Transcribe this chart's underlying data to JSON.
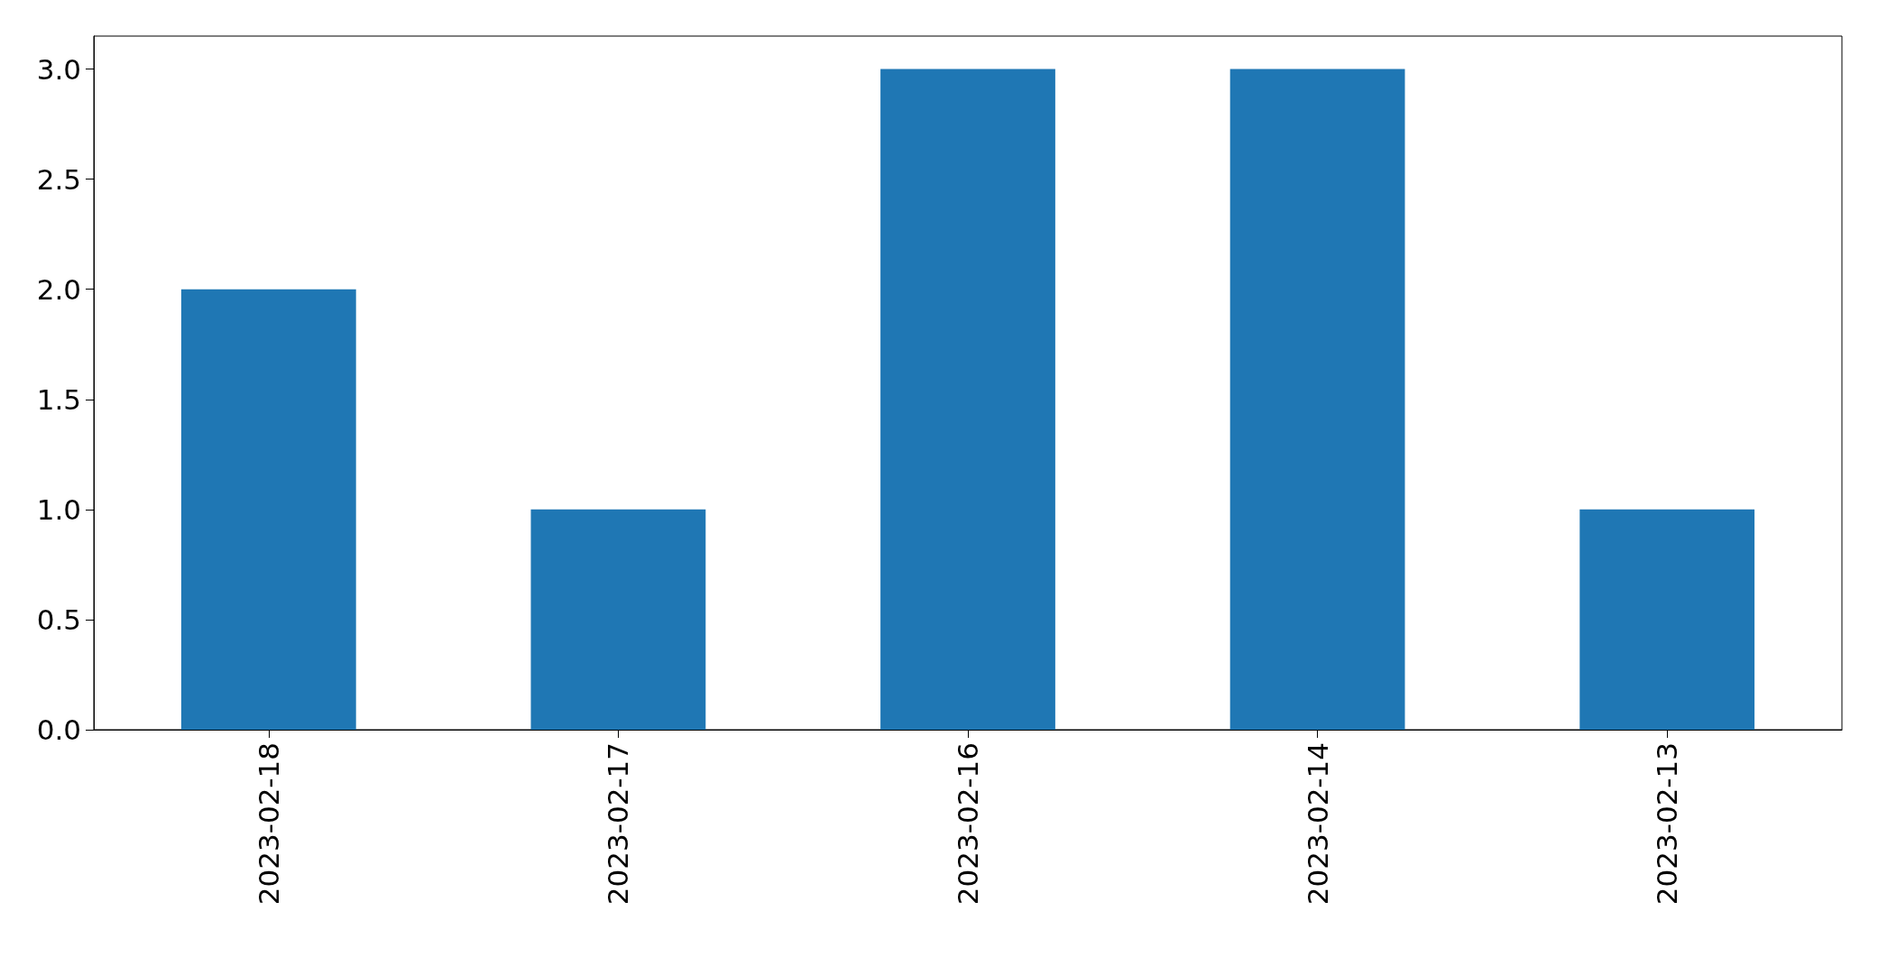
{
  "chart_data": {
    "type": "bar",
    "categories": [
      "2023-02-18",
      "2023-02-17",
      "2023-02-16",
      "2023-02-14",
      "2023-02-13"
    ],
    "values": [
      2,
      1,
      3,
      3,
      1
    ],
    "color": "#1f77b4",
    "ylim": [
      0,
      3.15
    ],
    "yticks": [
      {
        "value": 0,
        "label": "0.0"
      },
      0.5,
      {
        "value": 1,
        "label": "1.0"
      },
      1.5,
      {
        "value": 2,
        "label": "2.0"
      },
      2.5,
      {
        "value": 3,
        "label": "3.0"
      }
    ]
  }
}
